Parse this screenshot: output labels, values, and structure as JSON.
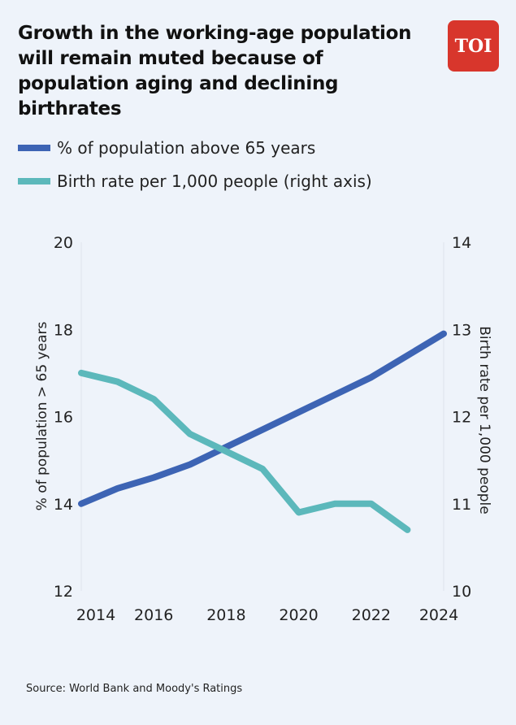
{
  "title": "Growth in the working-age population will remain muted because of population aging and declining birthrates",
  "logo": "TOI",
  "source": "Source: World Bank and Moody's Ratings",
  "colors": {
    "series1": "#3d64b4",
    "series2": "#5cb8bb",
    "logo": "#d8362c"
  },
  "chart_data": {
    "type": "line",
    "x": [
      2014,
      2015,
      2016,
      2017,
      2018,
      2019,
      2020,
      2021,
      2022,
      2023,
      2024
    ],
    "xticks": [
      "2014",
      "2016",
      "2018",
      "2020",
      "2022",
      "2024"
    ],
    "xlim": [
      2014,
      2024
    ],
    "ylabel": "% of population > 65 years",
    "ylim": [
      12,
      20
    ],
    "yticks": [
      "12",
      "14",
      "16",
      "18",
      "20"
    ],
    "y2label": "Birth rate per 1,000 people",
    "y2lim": [
      10,
      14
    ],
    "y2ticks": [
      "10",
      "11",
      "12",
      "13",
      "14"
    ],
    "legend_position": "top-left",
    "series": [
      {
        "name": "% of population above 65 years",
        "axis": "left",
        "values": [
          14.0,
          14.35,
          14.6,
          14.9,
          15.3,
          15.7,
          16.1,
          16.5,
          16.9,
          17.4,
          17.9
        ]
      },
      {
        "name": "Birth rate per 1,000 people (right axis)",
        "axis": "right",
        "values": [
          12.5,
          12.4,
          12.2,
          11.8,
          11.6,
          11.4,
          10.9,
          11.0,
          11.0,
          10.7,
          null
        ]
      }
    ]
  }
}
